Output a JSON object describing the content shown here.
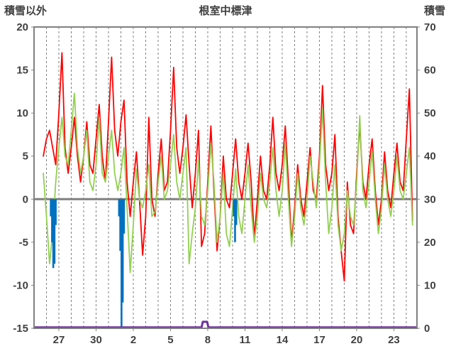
{
  "header": {
    "left_axis_title": "積雪以外",
    "chart_title": "根室中標津",
    "right_axis_title": "積雪"
  },
  "chart_data": {
    "type": "line",
    "title": "根室中標津",
    "background": "#FFFFFF",
    "frame_color": "#808080",
    "gridline_color": "#808080",
    "zero_line": {
      "value": 0,
      "axis": "left",
      "color": "#808080",
      "width": 3
    },
    "left_axis": {
      "label": "積雪以外",
      "min": -15,
      "max": 20,
      "ticks": [
        20,
        15,
        10,
        5,
        0,
        -5,
        -10,
        -15
      ]
    },
    "right_axis": {
      "label": "積雪",
      "min": 0,
      "max": 70,
      "ticks": [
        70,
        60,
        50,
        40,
        30,
        20,
        10,
        0
      ]
    },
    "x_axis": {
      "tick_labels": [
        "27",
        "30",
        "2",
        "5",
        "8",
        "11",
        "14",
        "17",
        "20",
        "23"
      ],
      "tick_days": [
        2,
        5,
        8,
        11,
        14,
        17,
        20,
        23,
        26,
        29
      ],
      "domain_days": [
        0,
        30.86
      ],
      "day_gridlines": true,
      "gridline_style": "dashed"
    },
    "series": [
      {
        "name": "temperature-red",
        "color": "#FF0000",
        "axis": "left",
        "type": "line",
        "start_day": 0.75,
        "step_days": 0.25,
        "values": [
          5,
          7,
          8,
          6,
          4,
          10,
          17,
          6,
          3,
          6,
          9.5,
          5,
          2,
          5,
          9,
          4,
          3,
          7,
          11,
          5,
          2,
          9,
          16.5,
          8,
          5,
          9,
          11.5,
          2,
          -2,
          2,
          5.5,
          0,
          -6.5,
          -2,
          9.5,
          0,
          -2,
          3,
          7,
          1,
          2,
          8,
          15.3,
          6,
          3,
          6,
          9.8,
          4,
          -1,
          3,
          8,
          -5.5,
          -4,
          2,
          8.5,
          1,
          -6,
          -2,
          5,
          0,
          -1,
          3,
          7,
          2,
          0,
          3,
          6.5,
          2,
          -4.5,
          0,
          5,
          1,
          0,
          4,
          9.5,
          3,
          1,
          4,
          8.5,
          2,
          -5,
          -1,
          4,
          0,
          -2,
          2,
          6,
          1,
          0,
          5,
          13.2,
          4,
          1,
          3,
          7.5,
          -2,
          -6,
          -9.5,
          2,
          -3,
          -4,
          3,
          8.7,
          2,
          0,
          4,
          7,
          1,
          -3,
          0,
          5.5,
          1,
          -1,
          3,
          6.5,
          2,
          1,
          7,
          12.8,
          -2.5
        ]
      },
      {
        "name": "secondary-green",
        "color": "#92D050",
        "axis": "left",
        "type": "line",
        "start_day": 0.75,
        "step_days": 0.25,
        "values": [
          3,
          -2,
          -7.5,
          -4,
          2,
          6,
          9.5,
          5,
          4,
          8,
          12.3,
          6,
          3,
          5,
          8,
          2,
          1,
          4,
          9.5,
          3,
          2,
          5,
          8,
          3,
          1,
          3,
          6,
          -1,
          -8.5,
          -3,
          3.5,
          0,
          -1,
          1,
          4,
          -2,
          -1.5,
          2,
          5,
          0,
          1,
          4,
          7.5,
          2,
          0,
          3,
          6,
          -7.5,
          -4,
          -1,
          4.5,
          -2,
          -3,
          1,
          6.5,
          2,
          -5,
          -2,
          3,
          -4,
          -5.5,
          -1,
          3.5,
          -2,
          -4,
          0,
          4,
          -1,
          -5,
          -2,
          3,
          0,
          -1,
          2,
          6,
          1,
          -2,
          1,
          6.5,
          0,
          -5.5,
          -2,
          3,
          -1,
          -3,
          0,
          5,
          2,
          -1,
          4,
          10.5,
          2,
          -4,
          -1,
          4,
          -3,
          -6,
          -4,
          1,
          -2,
          -3,
          2,
          9.7,
          1,
          -1,
          2,
          5.5,
          0,
          -4,
          -1,
          4,
          0,
          -2,
          1,
          5,
          1,
          0,
          3,
          6,
          -3
        ]
      },
      {
        "name": "bars-blue",
        "color": "#0070C0",
        "axis": "left",
        "type": "bar",
        "points": [
          [
            1.35,
            -2
          ],
          [
            1.45,
            -5
          ],
          [
            1.55,
            -8
          ],
          [
            1.65,
            -7.5
          ],
          [
            1.75,
            -3
          ],
          [
            6.85,
            -2
          ],
          [
            6.95,
            -6
          ],
          [
            7.05,
            -14.8
          ],
          [
            7.15,
            -12
          ],
          [
            7.25,
            -4
          ],
          [
            16.1,
            -2
          ],
          [
            16.2,
            -5
          ],
          [
            16.3,
            -3
          ]
        ]
      },
      {
        "name": "snow-purple",
        "color": "#7030A0",
        "axis": "right",
        "type": "line-points",
        "points": [
          [
            0.05,
            0.2
          ],
          [
            13.5,
            0.2
          ],
          [
            13.6,
            1.5
          ],
          [
            13.95,
            1.5
          ],
          [
            14.05,
            0.2
          ],
          [
            30.8,
            0.2
          ]
        ]
      }
    ]
  }
}
